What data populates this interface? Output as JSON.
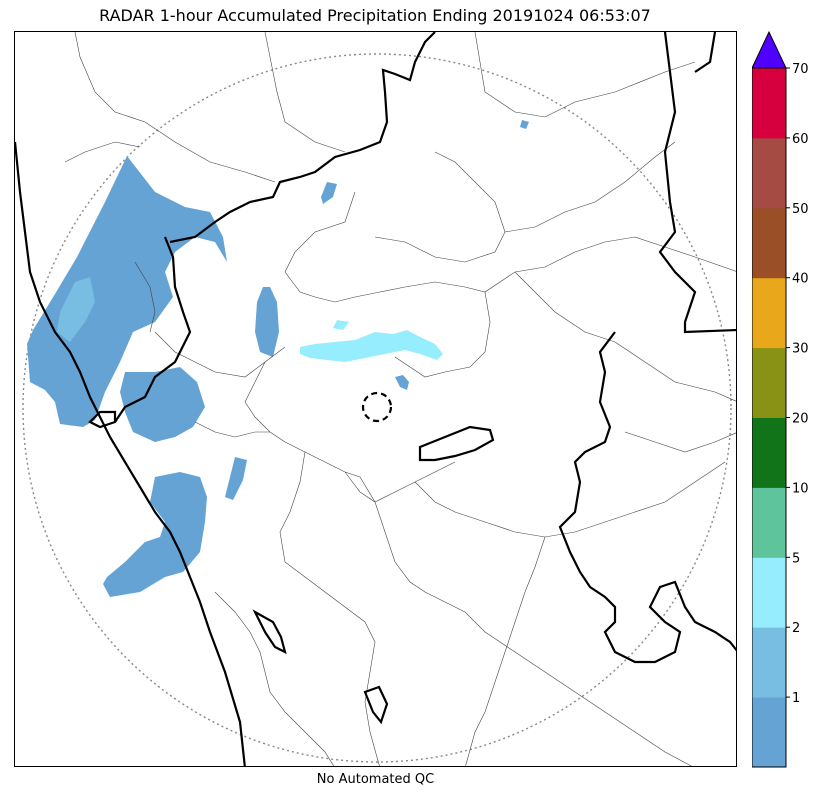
{
  "title": "RADAR 1-hour Accumulated Precipitation Ending 20191024 06:53:07",
  "footer_note": "No Automated QC",
  "colorbar": {
    "extend_color": "#5000ff",
    "bins": [
      {
        "color": "#65a3d5"
      },
      {
        "color": "#78bde2"
      },
      {
        "color": "#95edfd"
      },
      {
        "color": "#5ec49b"
      },
      {
        "color": "#117419"
      },
      {
        "color": "#899215"
      },
      {
        "color": "#e9a81b"
      },
      {
        "color": "#9a4f26"
      },
      {
        "color": "#a64a44"
      },
      {
        "color": "#d6003e"
      }
    ],
    "tick_labels": [
      "1",
      "2",
      "5",
      "10",
      "20",
      "30",
      "40",
      "50",
      "60",
      "70"
    ]
  }
}
